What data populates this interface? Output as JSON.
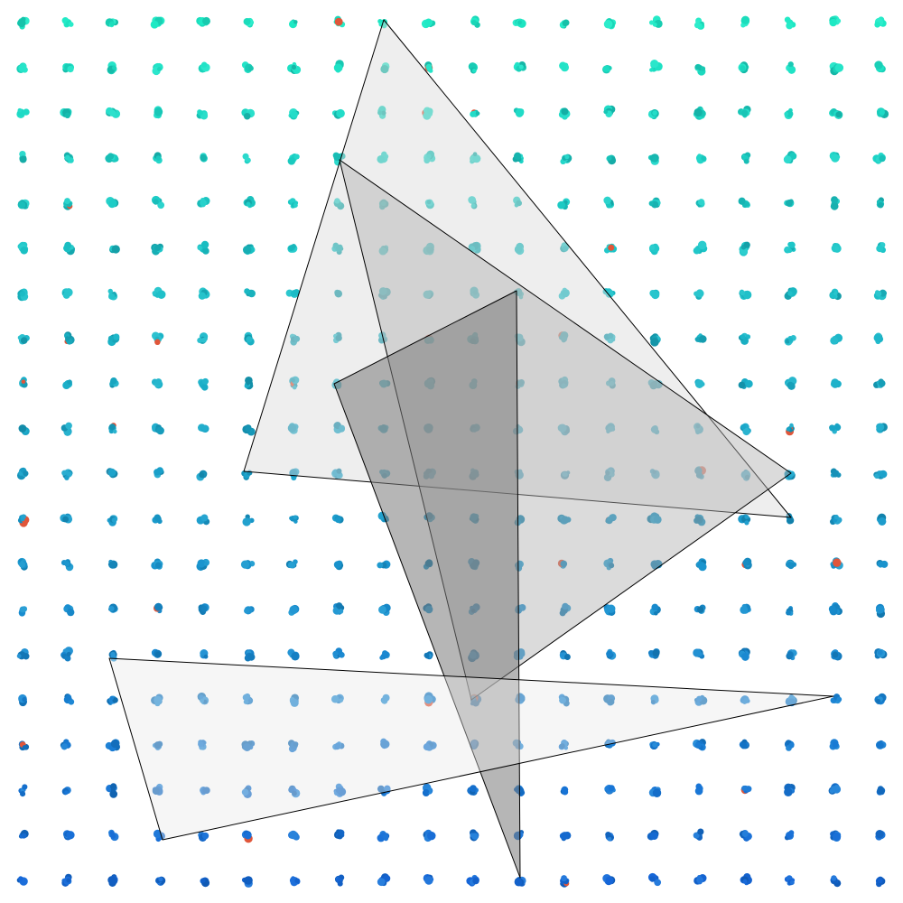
{
  "canvas": {
    "background": "#ffffff"
  },
  "dot_grid": {
    "columns": 20,
    "rows": 20,
    "color_top": "#1de9c4",
    "color_mid": "#1aa3c9",
    "color_bottom": "#1565d8",
    "accent_color": "#e0563a"
  },
  "triangles": [
    {
      "name": "triangle-large-top",
      "fill": "#d9d9d9",
      "fill_opacity": 0.45
    },
    {
      "name": "triangle-middle",
      "fill": "#b0b0b0",
      "fill_opacity": 0.45
    },
    {
      "name": "triangle-narrow-dark",
      "fill": "#7a7a7a",
      "fill_opacity": 0.55
    },
    {
      "name": "triangle-bottom-wide",
      "fill": "#e8e8e8",
      "fill_opacity": 0.4
    }
  ],
  "stroke_color": "#000000"
}
